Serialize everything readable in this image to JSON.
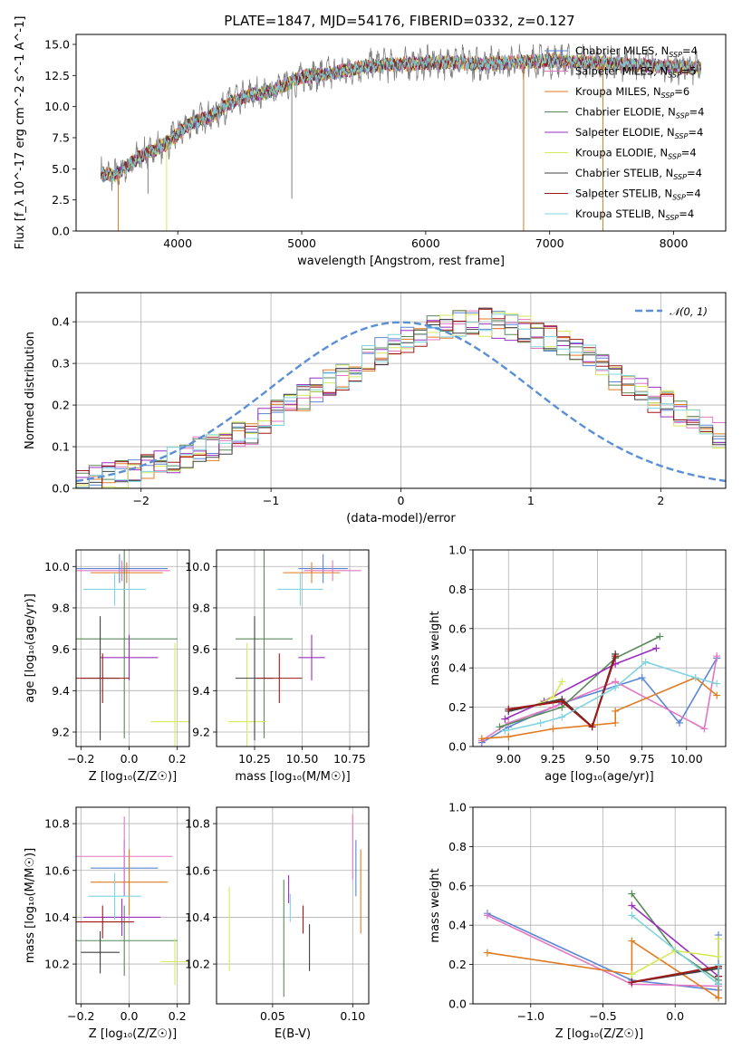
{
  "colors": {
    "Chabrier MILES": "#5b85d6",
    "Salpeter MILES": "#e377c2",
    "Kroupa MILES": "#e07b22",
    "Chabrier ELODIE": "#5a8a5a",
    "Salpeter ELODIE": "#9b30c0",
    "Kroupa ELODIE": "#d6ea5a",
    "Chabrier STELIB": "#404040",
    "Salpeter STELIB": "#a01818",
    "Kroupa STELIB": "#7fd4e0",
    "normal": "#5b8fd6"
  },
  "chart_data": [
    {
      "type": "line",
      "title": "PLATE=1847, MJD=54176, FIBERID=0332, z=0.127",
      "xlabel": "wavelength [Angstrom, rest frame]",
      "ylabel": "Flux [f_λ 10^-17 erg cm^-2 s^-1 A^-1]",
      "xlim": [
        3180,
        8420
      ],
      "ylim": [
        0,
        15.8
      ],
      "xticks": [
        "4000",
        "5000",
        "6000",
        "7000",
        "8000"
      ],
      "yticks": [
        "0.0",
        "2.5",
        "5.0",
        "7.5",
        "10.0",
        "12.5",
        "15.0"
      ],
      "legend_position": "top-right",
      "continuum": {
        "x": [
          3380,
          3500,
          3600,
          3700,
          3800,
          3900,
          4000,
          4100,
          4200,
          4300,
          4400,
          4500,
          4600,
          4700,
          4800,
          4900,
          5000,
          5200,
          5400,
          5600,
          5800,
          6000,
          6200,
          6400,
          6600,
          6800,
          7000,
          7200,
          7400,
          7600,
          7800,
          8000,
          8200
        ],
        "y": [
          4.6,
          4.5,
          5.3,
          6.0,
          6.5,
          7.0,
          7.8,
          8.6,
          9.0,
          9.4,
          10.2,
          10.6,
          11.0,
          11.1,
          11.4,
          11.9,
          12.4,
          12.6,
          13.0,
          13.3,
          13.4,
          13.5,
          13.6,
          13.4,
          13.5,
          13.6,
          13.7,
          13.6,
          13.5,
          13.4,
          13.3,
          13.2,
          13.1
        ]
      },
      "series": [
        {
          "name": "Chabrier MILES, N_SSP=4"
        },
        {
          "name": "Salpeter MILES, N_SSP=5"
        },
        {
          "name": "Kroupa MILES, N_SSP=6"
        },
        {
          "name": "Chabrier ELODIE, N_SSP=4"
        },
        {
          "name": "Salpeter ELODIE, N_SSP=4"
        },
        {
          "name": "Kroupa ELODIE, N_SSP=4"
        },
        {
          "name": "Chabrier STELIB, N_SSP=4"
        },
        {
          "name": "Salpeter STELIB, N_SSP=4"
        },
        {
          "name": "Kroupa STELIB, N_SSP=4"
        }
      ],
      "legend": [
        "Chabrier MILES, N",
        "Salpeter MILES, N",
        "Kroupa MILES, N",
        "Chabrier ELODIE, N",
        "Salpeter ELODIE, N",
        "Kroupa ELODIE, N",
        "Chabrier STELIB, N",
        "Salpeter STELIB, N",
        "Kroupa STELIB, N"
      ],
      "legend_sub": "SSP",
      "legend_vals": [
        "=4",
        "=5",
        "=6",
        "=4",
        "=4",
        "=4",
        "=4",
        "=4",
        "=4"
      ]
    },
    {
      "type": "line",
      "xlabel": "(data-model)/error",
      "ylabel": "Normed distribution",
      "xlim": [
        -2.5,
        2.5
      ],
      "ylim": [
        0,
        0.47
      ],
      "xticks": [
        "−2",
        "−1",
        "0",
        "1",
        "2"
      ],
      "yticks": [
        "0.0",
        "0.1",
        "0.2",
        "0.3",
        "0.4"
      ],
      "grid": true,
      "legend_position": "top-right",
      "normal_label": "𝒩(0, 1)",
      "histograms": {
        "bin_width": 0.1,
        "start": -2.5,
        "profile": [
          0.02,
          0.025,
          0.03,
          0.035,
          0.04,
          0.05,
          0.055,
          0.065,
          0.08,
          0.09,
          0.1,
          0.115,
          0.13,
          0.14,
          0.16,
          0.18,
          0.2,
          0.215,
          0.23,
          0.25,
          0.27,
          0.29,
          0.31,
          0.33,
          0.345,
          0.36,
          0.37,
          0.38,
          0.39,
          0.395,
          0.4,
          0.4,
          0.395,
          0.39,
          0.38,
          0.37,
          0.36,
          0.345,
          0.33,
          0.31,
          0.29,
          0.27,
          0.25,
          0.23,
          0.215,
          0.2,
          0.18,
          0.16,
          0.14,
          0.13
        ]
      }
    },
    {
      "type": "scatter",
      "xlabel": "Z [log₁₀(Z/Z☉)]",
      "ylabel": "age  [log₁₀(age/yr)]",
      "xlim": [
        -0.22,
        0.25
      ],
      "ylim": [
        9.13,
        10.08
      ],
      "xticks": [
        "−0.2",
        "0.0",
        "0.2"
      ],
      "yticks": [
        "9.2",
        "9.4",
        "9.6",
        "9.8",
        "10.0"
      ],
      "points": [
        {
          "s": "Chabrier MILES",
          "x": -0.04,
          "y": 9.99,
          "ex": 0.2,
          "ey": 0.07
        },
        {
          "s": "Salpeter MILES",
          "x": -0.03,
          "y": 9.98,
          "ex": 0.2,
          "ey": 0.05
        },
        {
          "s": "Kroupa MILES",
          "x": -0.01,
          "y": 9.97,
          "ex": 0.15,
          "ey": 0.05
        },
        {
          "s": "Chabrier ELODIE",
          "x": -0.02,
          "y": 9.65,
          "ex": 0.22,
          "ey": 0.48
        },
        {
          "s": "Salpeter ELODIE",
          "x": 0.0,
          "y": 9.56,
          "ex": 0.12,
          "ey": 0.11
        },
        {
          "s": "Kroupa ELODIE",
          "x": 0.19,
          "y": 9.25,
          "ex": 0.1,
          "ey": 0.38
        },
        {
          "s": "Chabrier STELIB",
          "x": -0.12,
          "y": 9.46,
          "ex": 0.08,
          "ey": 0.3
        },
        {
          "s": "Salpeter STELIB",
          "x": -0.11,
          "y": 9.46,
          "ex": 0.11,
          "ey": 0.12
        },
        {
          "s": "Kroupa STELIB",
          "x": -0.06,
          "y": 9.89,
          "ex": 0.13,
          "ey": 0.08
        }
      ]
    },
    {
      "type": "scatter",
      "xlabel": "mass [log₁₀(M/M☉)]",
      "ylabel": "",
      "xlim": [
        10.05,
        10.85
      ],
      "ylim": [
        9.13,
        10.08
      ],
      "xticks": [
        "10.25",
        "10.50",
        "10.75"
      ],
      "yticks": [
        "9.2",
        "9.4",
        "9.6",
        "9.8",
        "10.0"
      ],
      "points": [
        {
          "s": "Chabrier MILES",
          "x": 10.61,
          "y": 9.99,
          "ex": 0.13,
          "ey": 0.07
        },
        {
          "s": "Salpeter MILES",
          "x": 10.66,
          "y": 9.98,
          "ex": 0.15,
          "ey": 0.05
        },
        {
          "s": "Kroupa MILES",
          "x": 10.55,
          "y": 9.97,
          "ex": 0.15,
          "ey": 0.05
        },
        {
          "s": "Chabrier ELODIE",
          "x": 10.3,
          "y": 9.65,
          "ex": 0.15,
          "ey": 0.48
        },
        {
          "s": "Salpeter ELODIE",
          "x": 10.55,
          "y": 9.56,
          "ex": 0.07,
          "ey": 0.11
        },
        {
          "s": "Kroupa ELODIE",
          "x": 10.21,
          "y": 9.25,
          "ex": 0.1,
          "ey": 0.38
        },
        {
          "s": "Chabrier STELIB",
          "x": 10.25,
          "y": 9.46,
          "ex": 0.1,
          "ey": 0.3
        },
        {
          "s": "Salpeter STELIB",
          "x": 10.38,
          "y": 9.46,
          "ex": 0.12,
          "ey": 0.12
        },
        {
          "s": "Kroupa STELIB",
          "x": 10.49,
          "y": 9.89,
          "ex": 0.12,
          "ey": 0.08
        }
      ]
    },
    {
      "type": "line",
      "xlabel": "age  [log₁₀(age/yr)]",
      "ylabel": "mass weight",
      "xlim": [
        8.8,
        10.22
      ],
      "ylim": [
        0,
        1
      ],
      "xticks": [
        "9.00",
        "9.25",
        "9.50",
        "9.75",
        "10.00"
      ],
      "yticks": [
        "0.0",
        "0.2",
        "0.4",
        "0.6",
        "0.8",
        "1.0"
      ],
      "grid": true,
      "series": [
        {
          "s": "Chabrier MILES",
          "x": [
            8.85,
            9.0,
            9.3,
            9.75,
            9.96,
            10.17
          ],
          "y": [
            0.02,
            0.1,
            0.22,
            0.35,
            0.12,
            0.45
          ]
        },
        {
          "s": "Salpeter MILES",
          "x": [
            8.85,
            9.0,
            9.25,
            9.6,
            10.1,
            10.17
          ],
          "y": [
            0.03,
            0.12,
            0.2,
            0.33,
            0.09,
            0.46
          ]
        },
        {
          "s": "Kroupa MILES",
          "x": [
            8.85,
            9.0,
            9.25,
            9.6,
            9.6,
            10.05,
            10.17
          ],
          "y": [
            0.04,
            0.05,
            0.09,
            0.12,
            0.18,
            0.35,
            0.26
          ]
        },
        {
          "s": "Chabrier ELODIE",
          "x": [
            8.95,
            9.3,
            9.6,
            9.85
          ],
          "y": [
            0.1,
            0.2,
            0.45,
            0.56
          ]
        },
        {
          "s": "Salpeter ELODIE",
          "x": [
            8.98,
            9.2,
            9.6,
            9.83
          ],
          "y": [
            0.14,
            0.23,
            0.42,
            0.5
          ]
        },
        {
          "s": "Kroupa ELODIE",
          "x": [
            9.18,
            9.25,
            9.3
          ],
          "y": [
            0.22,
            0.25,
            0.33
          ]
        },
        {
          "s": "Chabrier STELIB",
          "x": [
            9.0,
            9.3,
            9.47,
            9.6
          ],
          "y": [
            0.18,
            0.24,
            0.1,
            0.47
          ]
        },
        {
          "s": "Salpeter STELIB",
          "x": [
            9.0,
            9.3,
            9.47,
            9.6
          ],
          "y": [
            0.19,
            0.23,
            0.1,
            0.46
          ]
        },
        {
          "s": "Kroupa STELIB",
          "x": [
            8.98,
            9.18,
            9.3,
            9.6,
            9.77,
            10.05,
            10.17
          ],
          "y": [
            0.08,
            0.12,
            0.15,
            0.3,
            0.43,
            0.35,
            0.32
          ]
        }
      ]
    },
    {
      "type": "scatter",
      "xlabel": "Z [log₁₀(Z/Z☉)]",
      "ylabel": "mass [log₁₀(M/M☉)]",
      "xlim": [
        -0.22,
        0.25
      ],
      "ylim": [
        10.03,
        10.87
      ],
      "xticks": [
        "−0.2",
        "0.0",
        "0.2"
      ],
      "yticks": [
        "10.2",
        "10.4",
        "10.6",
        "10.8"
      ],
      "points": [
        {
          "s": "Chabrier MILES",
          "x": -0.02,
          "y": 10.61,
          "ex": 0.14,
          "ey": 0.12
        },
        {
          "s": "Salpeter MILES",
          "x": -0.02,
          "y": 10.66,
          "ex": 0.2,
          "ey": 0.17
        },
        {
          "s": "Kroupa MILES",
          "x": 0.0,
          "y": 10.55,
          "ex": 0.16,
          "ey": 0.14
        },
        {
          "s": "Chabrier ELODIE",
          "x": -0.02,
          "y": 10.3,
          "ex": 0.22,
          "ey": 0.15
        },
        {
          "s": "Salpeter ELODIE",
          "x": -0.03,
          "y": 10.4,
          "ex": 0.16,
          "ey": 0.08
        },
        {
          "s": "Kroupa ELODIE",
          "x": 0.19,
          "y": 10.21,
          "ex": 0.06,
          "ey": 0.1
        },
        {
          "s": "Chabrier STELIB",
          "x": -0.12,
          "y": 10.25,
          "ex": 0.08,
          "ey": 0.09
        },
        {
          "s": "Salpeter STELIB",
          "x": -0.11,
          "y": 10.38,
          "ex": 0.13,
          "ey": 0.07
        },
        {
          "s": "Kroupa STELIB",
          "x": -0.06,
          "y": 10.49,
          "ex": 0.11,
          "ey": 0.1
        }
      ]
    },
    {
      "type": "scatter",
      "xlabel": "E(B-V)",
      "ylabel": "",
      "xlim": [
        0.015,
        0.11
      ],
      "ylim": [
        10.03,
        10.87
      ],
      "xticks": [
        "0.05",
        "0.10"
      ],
      "yticks": [
        "10.2",
        "10.4",
        "10.6",
        "10.8"
      ],
      "points": [
        {
          "s": "Chabrier MILES",
          "x": 0.102,
          "y": 10.61,
          "ey": 0.12
        },
        {
          "s": "Salpeter MILES",
          "x": 0.1,
          "y": 10.7,
          "ey": 0.14
        },
        {
          "s": "Kroupa MILES",
          "x": 0.105,
          "y": 10.51,
          "ey": 0.18
        },
        {
          "s": "Chabrier ELODIE",
          "x": 0.057,
          "y": 10.31,
          "ey": 0.25
        },
        {
          "s": "Salpeter ELODIE",
          "x": 0.06,
          "y": 10.52,
          "ey": 0.06
        },
        {
          "s": "Kroupa ELODIE",
          "x": 0.023,
          "y": 10.35,
          "ey": 0.18
        },
        {
          "s": "Chabrier STELIB",
          "x": 0.073,
          "y": 10.27,
          "ey": 0.1
        },
        {
          "s": "Salpeter STELIB",
          "x": 0.069,
          "y": 10.39,
          "ey": 0.06
        },
        {
          "s": "Kroupa STELIB",
          "x": 0.061,
          "y": 10.44,
          "ey": 0.06
        }
      ]
    },
    {
      "type": "line",
      "xlabel": "Z [log₁₀(Z/Z☉)]",
      "ylabel": "mass weight",
      "xlim": [
        -1.4,
        0.35
      ],
      "ylim": [
        0,
        1
      ],
      "xticks": [
        "−1.0",
        "−0.5",
        "0.0"
      ],
      "yticks": [
        "0.0",
        "0.2",
        "0.4",
        "0.6",
        "0.8",
        "1.0"
      ],
      "grid": true,
      "series": [
        {
          "s": "Chabrier MILES",
          "x": [
            -1.3,
            -0.3,
            0.3,
            0.3
          ],
          "y": [
            0.46,
            0.12,
            0.07,
            0.35
          ]
        },
        {
          "s": "Salpeter MILES",
          "x": [
            -1.3,
            -0.3,
            0.3,
            0.3
          ],
          "y": [
            0.45,
            0.1,
            0.09,
            0.2
          ]
        },
        {
          "s": "Kroupa MILES",
          "x": [
            -1.3,
            -0.3,
            -0.3,
            0.3,
            0.3
          ],
          "y": [
            0.26,
            0.15,
            0.32,
            0.03,
            0.1
          ]
        },
        {
          "s": "Chabrier ELODIE",
          "x": [
            -0.3,
            0.0,
            0.3,
            0.3
          ],
          "y": [
            0.56,
            0.27,
            0.12,
            0.18
          ]
        },
        {
          "s": "Salpeter ELODIE",
          "x": [
            -0.3,
            0.3,
            0.3
          ],
          "y": [
            0.5,
            0.14,
            0.2
          ]
        },
        {
          "s": "Kroupa ELODIE",
          "x": [
            -0.3,
            0.0,
            0.3,
            0.3
          ],
          "y": [
            0.15,
            0.27,
            0.24,
            0.33
          ]
        },
        {
          "s": "Chabrier STELIB",
          "x": [
            -0.3,
            0.3,
            0.3
          ],
          "y": [
            0.11,
            0.18,
            0.1
          ]
        },
        {
          "s": "Salpeter STELIB",
          "x": [
            -0.3,
            0.3,
            0.3
          ],
          "y": [
            0.11,
            0.19,
            0.14
          ]
        },
        {
          "s": "Kroupa STELIB",
          "x": [
            -0.3,
            0.3,
            0.3
          ],
          "y": [
            0.45,
            0.1,
            0.2
          ]
        }
      ]
    }
  ]
}
